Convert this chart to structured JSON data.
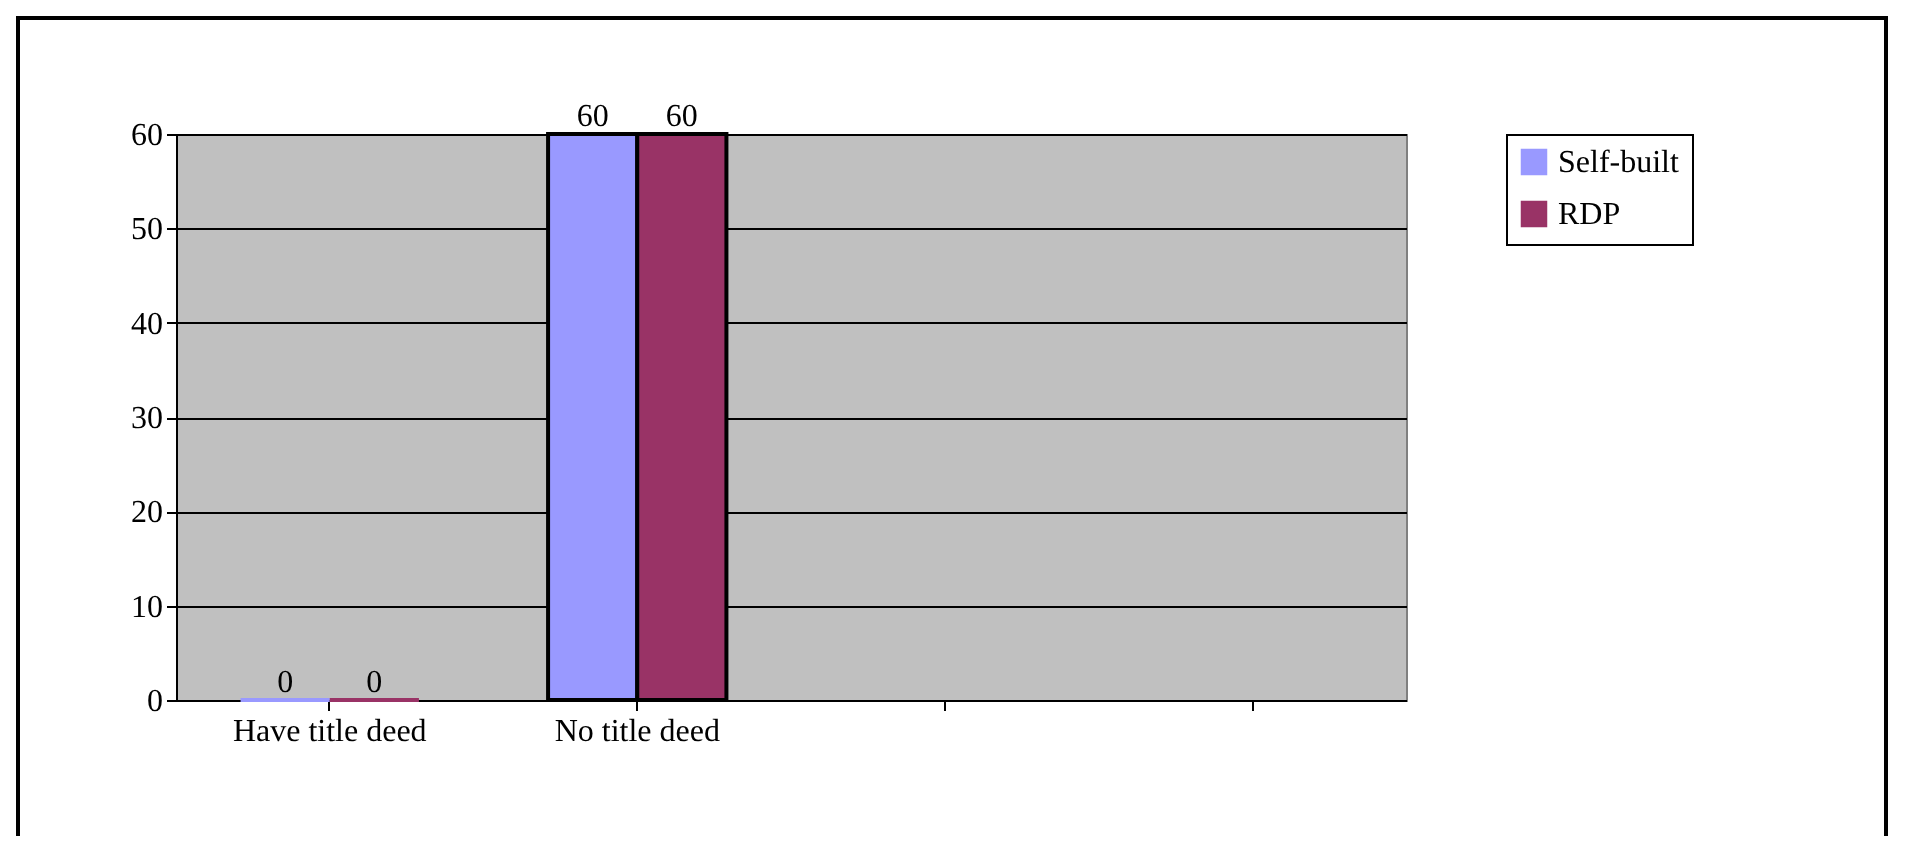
{
  "chart_data": {
    "type": "bar",
    "categories": [
      "Have title deed",
      "No title deed",
      null,
      null
    ],
    "series": [
      {
        "name": "Self-built",
        "color": "#9999ff",
        "values": [
          0,
          60,
          null,
          null
        ]
      },
      {
        "name": "RDP",
        "color": "#993366",
        "values": [
          0,
          60,
          null,
          null
        ]
      }
    ],
    "ylim": [
      0,
      60
    ],
    "yticks": [
      0,
      10,
      20,
      30,
      40,
      50,
      60
    ],
    "grid": "y",
    "legend": "right",
    "data_labels": true
  }
}
